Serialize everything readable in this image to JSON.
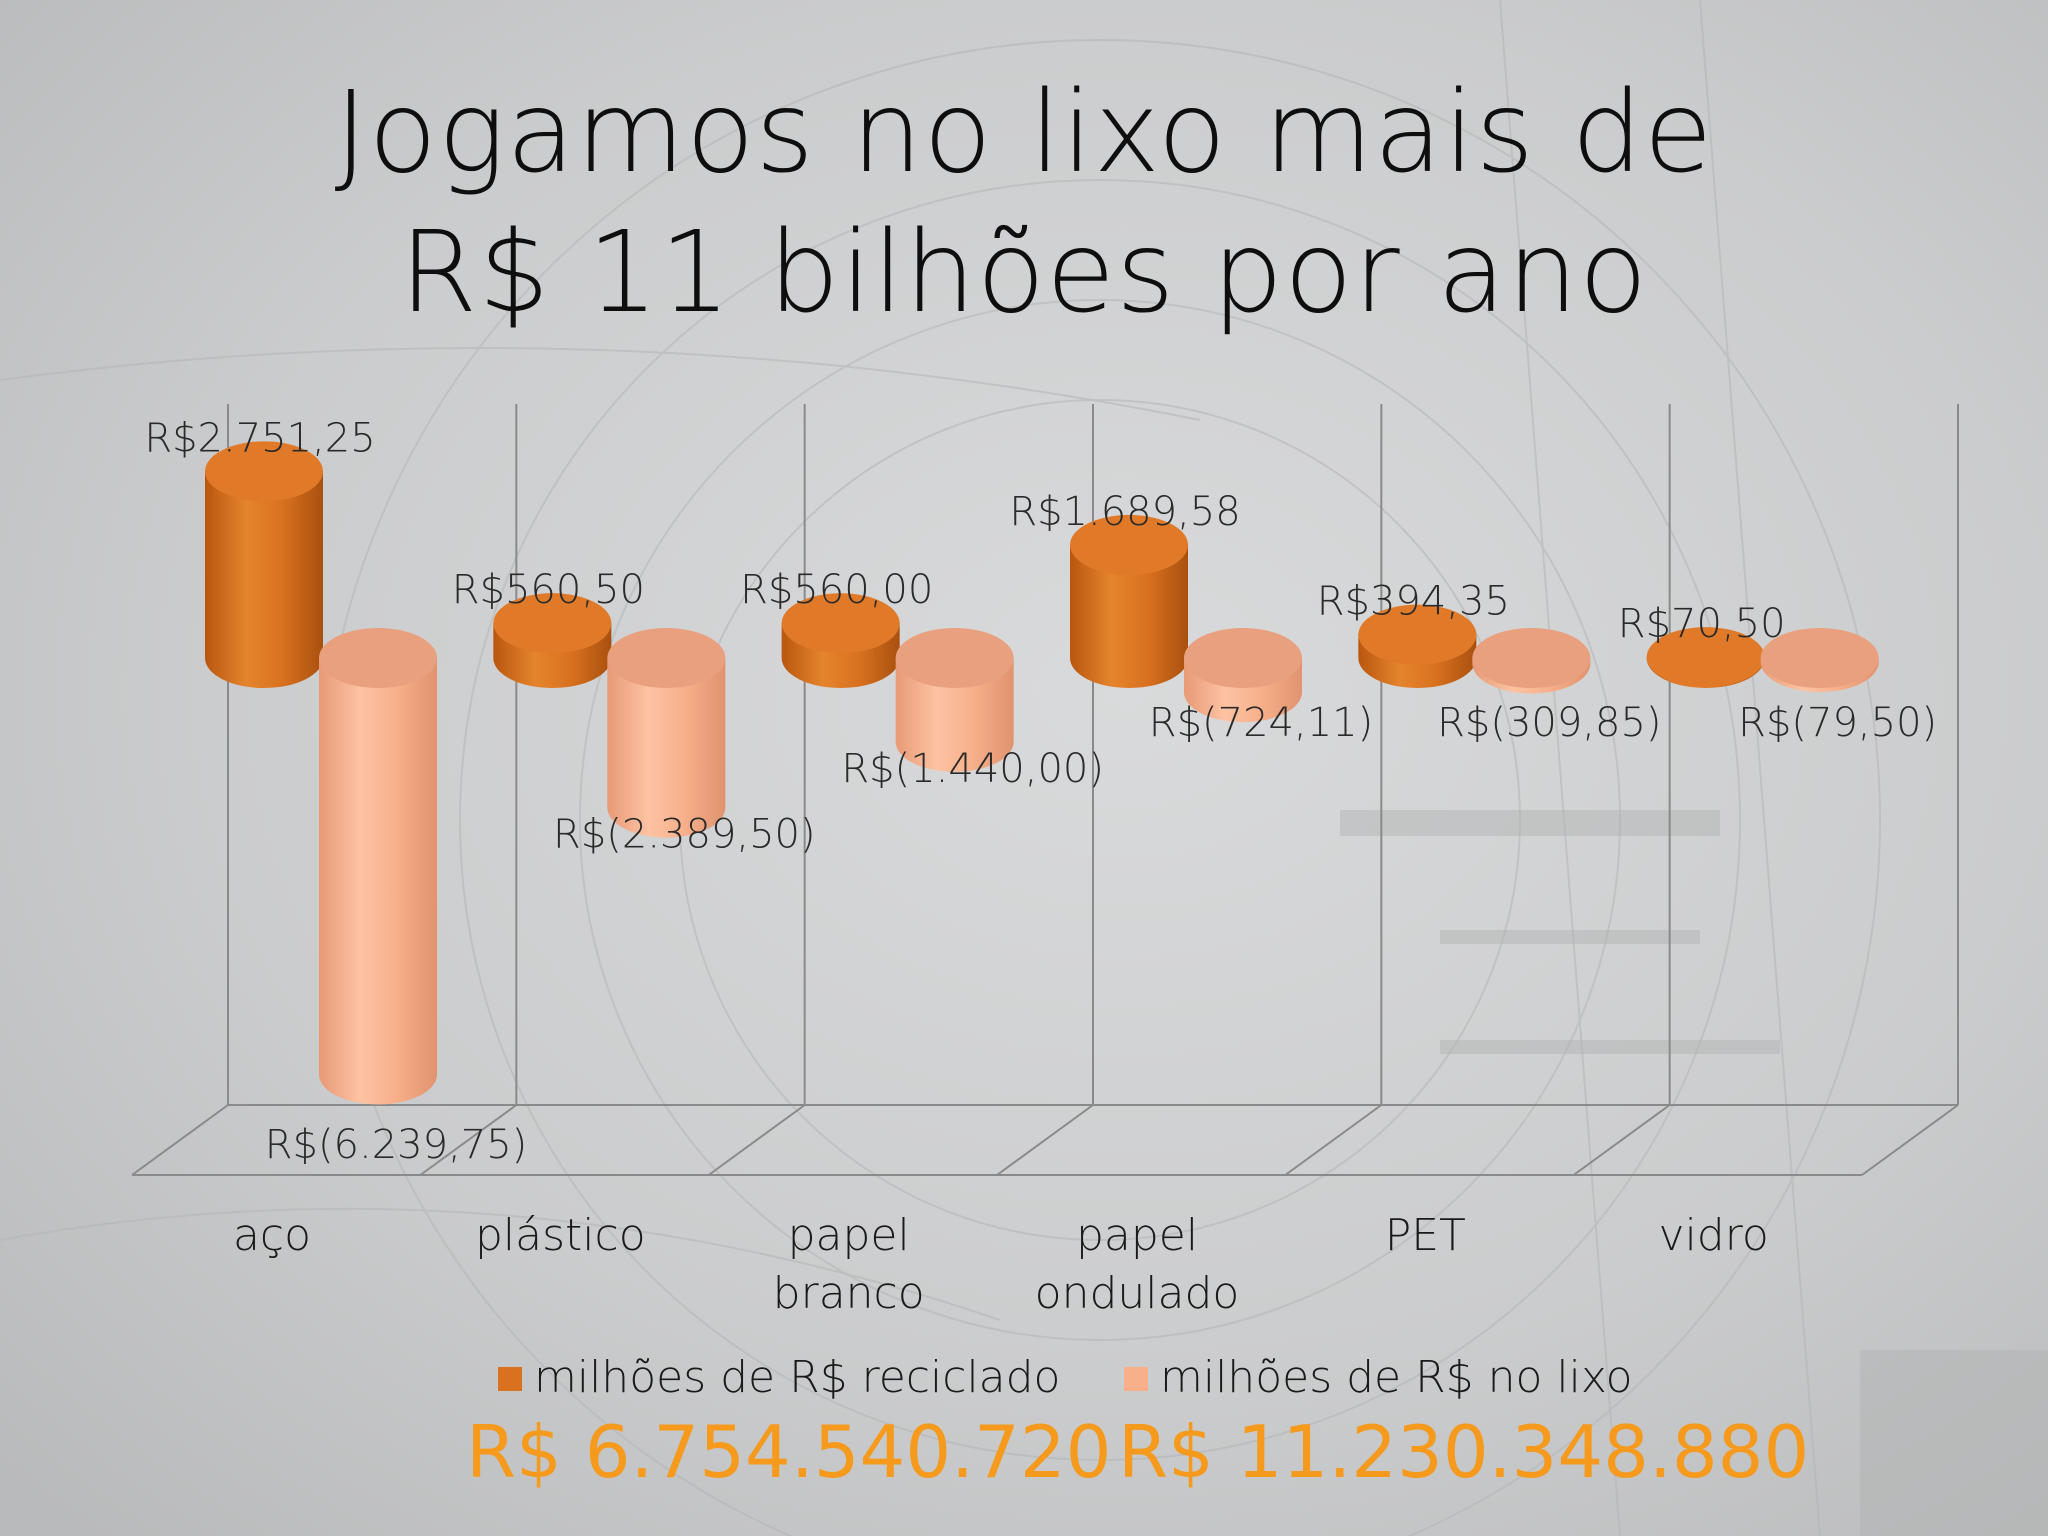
{
  "title": {
    "line1": "Jogamos no lixo mais de",
    "line2": "R$ 11 bilhões por ano"
  },
  "totals": {
    "recycled": "R$ 6.754.540.720",
    "lixo": "R$ 11.230.348.880"
  },
  "colors": {
    "recycled": "#d9721f",
    "lixo": "#f7b08a",
    "axis": "#8a8a8a",
    "total_text": "#f59a1d"
  },
  "chart_data": {
    "type": "bar",
    "style": "3d-cylinder",
    "categories": [
      "aço",
      "plástico",
      "papel branco",
      "papel ondulado",
      "PET",
      "vidro"
    ],
    "category_lines": [
      [
        "aço"
      ],
      [
        "plástico"
      ],
      [
        "papel",
        "branco"
      ],
      [
        "papel",
        "ondulado"
      ],
      [
        "PET"
      ],
      [
        "vidro"
      ]
    ],
    "series": [
      {
        "name": "milhões de R$ reciclado",
        "values": [
          2751.25,
          560.5,
          560.0,
          1689.58,
          394.35,
          70.5
        ],
        "labels": [
          "R$2.751,25",
          "R$560,50",
          "R$560,00",
          "R$1.689,58",
          "R$394,35",
          "R$70,50"
        ]
      },
      {
        "name": "milhões de R$ no lixo",
        "values": [
          -6239.75,
          -2389.5,
          -1440.0,
          -724.11,
          -309.85,
          -79.5
        ],
        "labels": [
          "R$(6.239,75)",
          "R$(2.389,50)",
          "R$(1.440,00)",
          "R$(724,11)",
          "R$(309,85)",
          "R$(79,50)"
        ]
      }
    ],
    "legend_position": "bottom",
    "grid": true
  }
}
